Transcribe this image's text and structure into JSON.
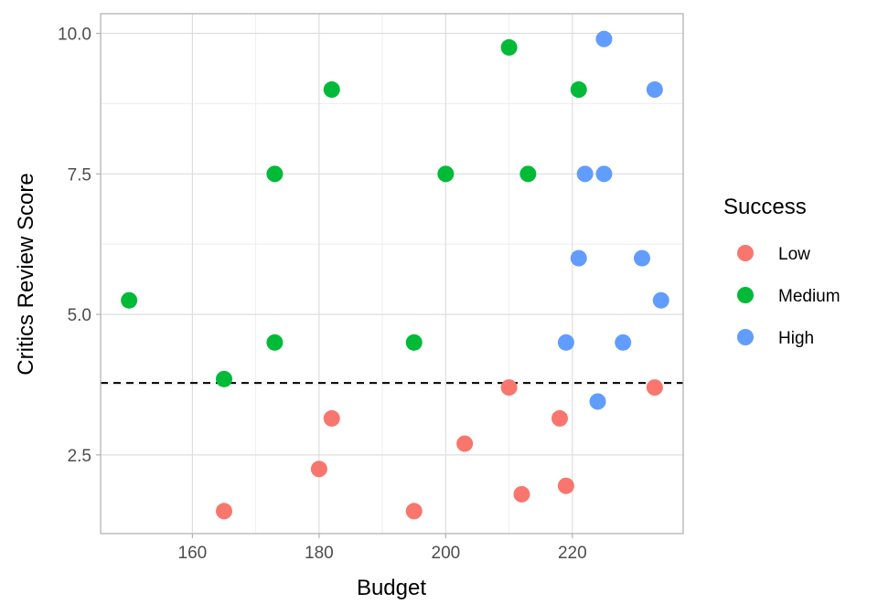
{
  "chart_data": {
    "type": "scatter",
    "xlabel": "Budget",
    "ylabel": "Critics Review Score",
    "xlim": [
      145.5,
      237.5
    ],
    "ylim": [
      1.1,
      10.35
    ],
    "x_ticks": [
      160,
      180,
      200,
      220
    ],
    "y_ticks": [
      2.5,
      5.0,
      7.5,
      10.0
    ],
    "grid": true,
    "reference_line": {
      "orientation": "horizontal",
      "y": 3.78,
      "style": "dashed",
      "color": "#000000"
    },
    "legend": {
      "title": "Success",
      "position": "right"
    },
    "series": [
      {
        "name": "Low",
        "color": "#F8766D",
        "points": [
          {
            "x": 165,
            "y": 1.5
          },
          {
            "x": 180,
            "y": 2.25
          },
          {
            "x": 182,
            "y": 3.15
          },
          {
            "x": 195,
            "y": 1.5
          },
          {
            "x": 203,
            "y": 2.7
          },
          {
            "x": 210,
            "y": 3.7
          },
          {
            "x": 212,
            "y": 1.8
          },
          {
            "x": 218,
            "y": 3.15
          },
          {
            "x": 219,
            "y": 1.95
          },
          {
            "x": 233,
            "y": 3.7
          }
        ]
      },
      {
        "name": "Medium",
        "color": "#00BA38",
        "points": [
          {
            "x": 150,
            "y": 5.25
          },
          {
            "x": 165,
            "y": 3.85
          },
          {
            "x": 173,
            "y": 4.5
          },
          {
            "x": 173,
            "y": 7.5
          },
          {
            "x": 182,
            "y": 9.0
          },
          {
            "x": 195,
            "y": 4.5
          },
          {
            "x": 200,
            "y": 7.5
          },
          {
            "x": 210,
            "y": 9.75
          },
          {
            "x": 213,
            "y": 7.5
          },
          {
            "x": 221,
            "y": 9.0
          }
        ]
      },
      {
        "name": "High",
        "color": "#619CFF",
        "points": [
          {
            "x": 219,
            "y": 4.5
          },
          {
            "x": 221,
            "y": 6.0
          },
          {
            "x": 222,
            "y": 7.5
          },
          {
            "x": 224,
            "y": 3.45
          },
          {
            "x": 225,
            "y": 7.5
          },
          {
            "x": 225,
            "y": 9.9
          },
          {
            "x": 228,
            "y": 4.5
          },
          {
            "x": 231,
            "y": 6.0
          },
          {
            "x": 233,
            "y": 9.0
          },
          {
            "x": 234,
            "y": 5.25
          }
        ]
      }
    ]
  }
}
